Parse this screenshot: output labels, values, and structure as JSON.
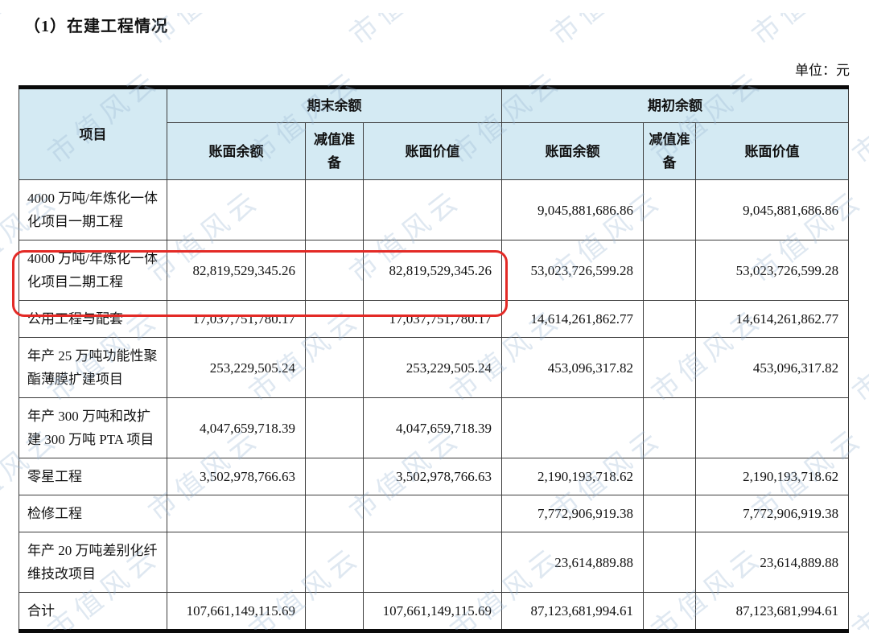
{
  "page": {
    "title": "（1）在建工程情况",
    "unit_label": "单位：元"
  },
  "watermark": {
    "text": "市值风云"
  },
  "annotation": {
    "color": "#e32a26",
    "highlighted_project": "4000 万吨/年炼化一体化项目二期工程"
  },
  "table": {
    "header": {
      "item": "项目",
      "ending_group": "期末余额",
      "beginning_group": "期初余额",
      "book_balance": "账面余额",
      "impairment": "减值准备",
      "carrying_value": "账面价值"
    },
    "rows": [
      {
        "name": "4000 万吨/年炼化一体化项目一期工程",
        "highlight": false,
        "values": [
          "",
          "",
          "",
          "9,045,881,686.86",
          "",
          "9,045,881,686.86"
        ]
      },
      {
        "name": "4000 万吨/年炼化一体化项目二期工程",
        "highlight": true,
        "values": [
          "82,819,529,345.26",
          "",
          "82,819,529,345.26",
          "53,023,726,599.28",
          "",
          "53,023,726,599.28"
        ]
      },
      {
        "name": "公用工程与配套",
        "highlight": false,
        "values": [
          "17,037,751,780.17",
          "",
          "17,037,751,780.17",
          "14,614,261,862.77",
          "",
          "14,614,261,862.77"
        ]
      },
      {
        "name": "年产 25 万吨功能性聚酯薄膜扩建项目",
        "highlight": false,
        "values": [
          "253,229,505.24",
          "",
          "253,229,505.24",
          "453,096,317.82",
          "",
          "453,096,317.82"
        ]
      },
      {
        "name": "年产 300 万吨和改扩建 300 万吨 PTA 项目",
        "highlight": false,
        "values": [
          "4,047,659,718.39",
          "",
          "4,047,659,718.39",
          "",
          "",
          ""
        ]
      },
      {
        "name": "零星工程",
        "highlight": false,
        "values": [
          "3,502,978,766.63",
          "",
          "3,502,978,766.63",
          "2,190,193,718.62",
          "",
          "2,190,193,718.62"
        ]
      },
      {
        "name": "检修工程",
        "highlight": false,
        "values": [
          "",
          "",
          "",
          "7,772,906,919.38",
          "",
          "7,772,906,919.38"
        ]
      },
      {
        "name": "年产 20 万吨差别化纤维技改项目",
        "highlight": false,
        "values": [
          "",
          "",
          "",
          "23,614,889.88",
          "",
          "23,614,889.88"
        ]
      },
      {
        "name": "合计",
        "highlight": false,
        "total": true,
        "values": [
          "107,661,149,115.69",
          "",
          "107,661,149,115.69",
          "87,123,681,994.61",
          "",
          "87,123,681,994.61"
        ]
      }
    ]
  }
}
